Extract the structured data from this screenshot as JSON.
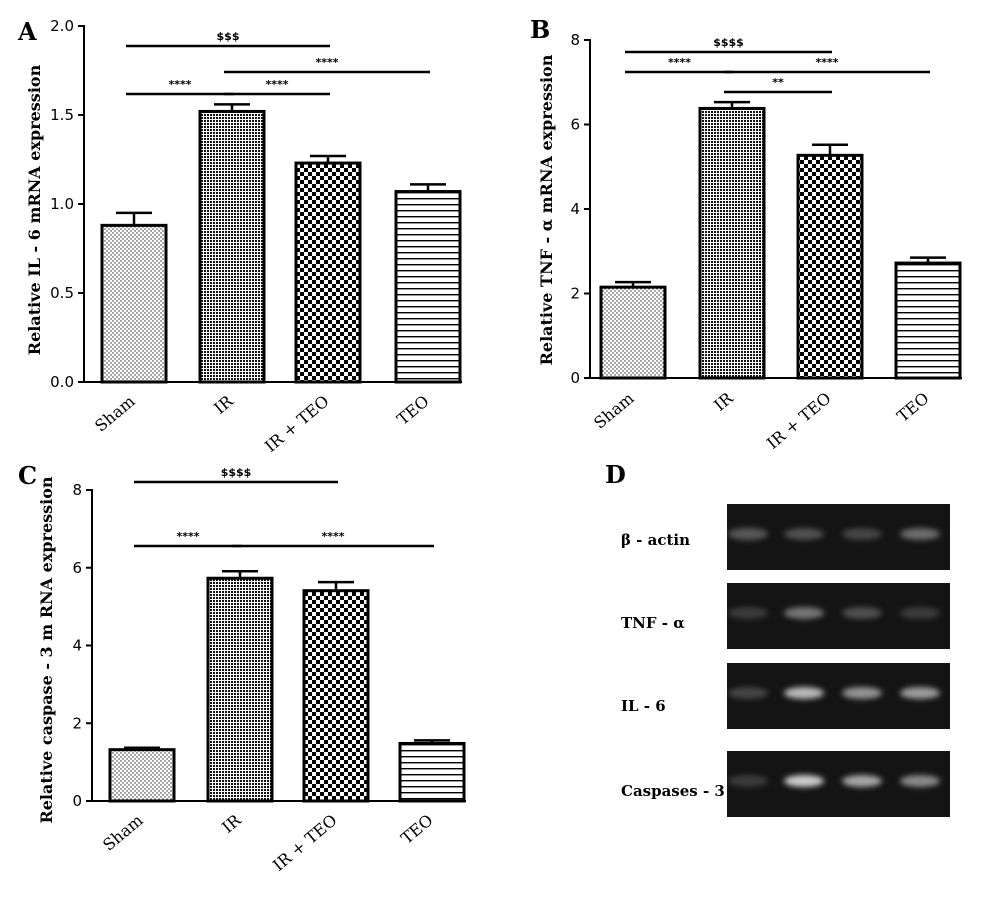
{
  "categories": [
    "Sham",
    "IR",
    "IR + TEO",
    "TEO"
  ],
  "chart_data": [
    {
      "panel": "A",
      "type": "bar",
      "ylabel": "Relative IL - 6 mRNA expression",
      "ylim": [
        0,
        2.0
      ],
      "yticks": [
        "0.0",
        "0.5",
        "1.0",
        "1.5",
        "2.0"
      ],
      "categories": [
        "Sham",
        "IR",
        "IR + TEO",
        "TEO"
      ],
      "values": [
        0.88,
        1.52,
        1.23,
        1.07
      ],
      "errors": [
        0.07,
        0.04,
        0.04,
        0.04
      ],
      "significance": [
        {
          "from": 0,
          "to": 2,
          "label": "$$$"
        },
        {
          "from": 1,
          "to": 3,
          "label": "****"
        },
        {
          "from": 0,
          "to": 1,
          "label": "****"
        },
        {
          "from": 1,
          "to": 2,
          "label": "****"
        }
      ]
    },
    {
      "panel": "B",
      "type": "bar",
      "ylabel": "Relative TNF - α mRNA expression",
      "ylim": [
        0,
        8
      ],
      "yticks": [
        "0",
        "2",
        "4",
        "6",
        "8"
      ],
      "categories": [
        "Sham",
        "IR",
        "IR + TEO",
        "TEO"
      ],
      "values": [
        2.15,
        6.38,
        5.27,
        2.72
      ],
      "errors": [
        0.12,
        0.15,
        0.25,
        0.13
      ],
      "significance": [
        {
          "from": 0,
          "to": 2,
          "label": "$$$$"
        },
        {
          "from": 0,
          "to": 1,
          "label": "****"
        },
        {
          "from": 1,
          "to": 3,
          "label": "****"
        },
        {
          "from": 1,
          "to": 2,
          "label": "**"
        }
      ]
    },
    {
      "panel": "C",
      "type": "bar",
      "ylabel": "Relative caspase - 3 m RNA expression",
      "ylim": [
        0,
        8
      ],
      "yticks": [
        "0",
        "2",
        "4",
        "6",
        "8"
      ],
      "categories": [
        "Sham",
        "IR",
        "IR + TEO",
        "TEO"
      ],
      "values": [
        1.32,
        5.73,
        5.41,
        1.48
      ],
      "errors": [
        0.05,
        0.18,
        0.22,
        0.08
      ],
      "significance": [
        {
          "from": 0,
          "to": 2,
          "label": "$$$$"
        },
        {
          "from": 0,
          "to": 1,
          "label": "****"
        },
        {
          "from": 1,
          "to": 3,
          "label": "****"
        }
      ]
    }
  ],
  "gel": {
    "panel": "D",
    "rows": [
      {
        "label": "β - actin",
        "bands": [
          0.35,
          0.3,
          0.25,
          0.45
        ]
      },
      {
        "label": "TNF - α",
        "bands": [
          0.2,
          0.5,
          0.3,
          0.2
        ]
      },
      {
        "label": "IL - 6",
        "bands": [
          0.25,
          0.85,
          0.65,
          0.7
        ]
      },
      {
        "label": "Caspases - 3",
        "bands": [
          0.2,
          0.95,
          0.75,
          0.6
        ]
      }
    ]
  },
  "colors": {
    "bar_stroke": "#000000",
    "gel_bg": "#141414",
    "band": "#d8d8d8"
  }
}
